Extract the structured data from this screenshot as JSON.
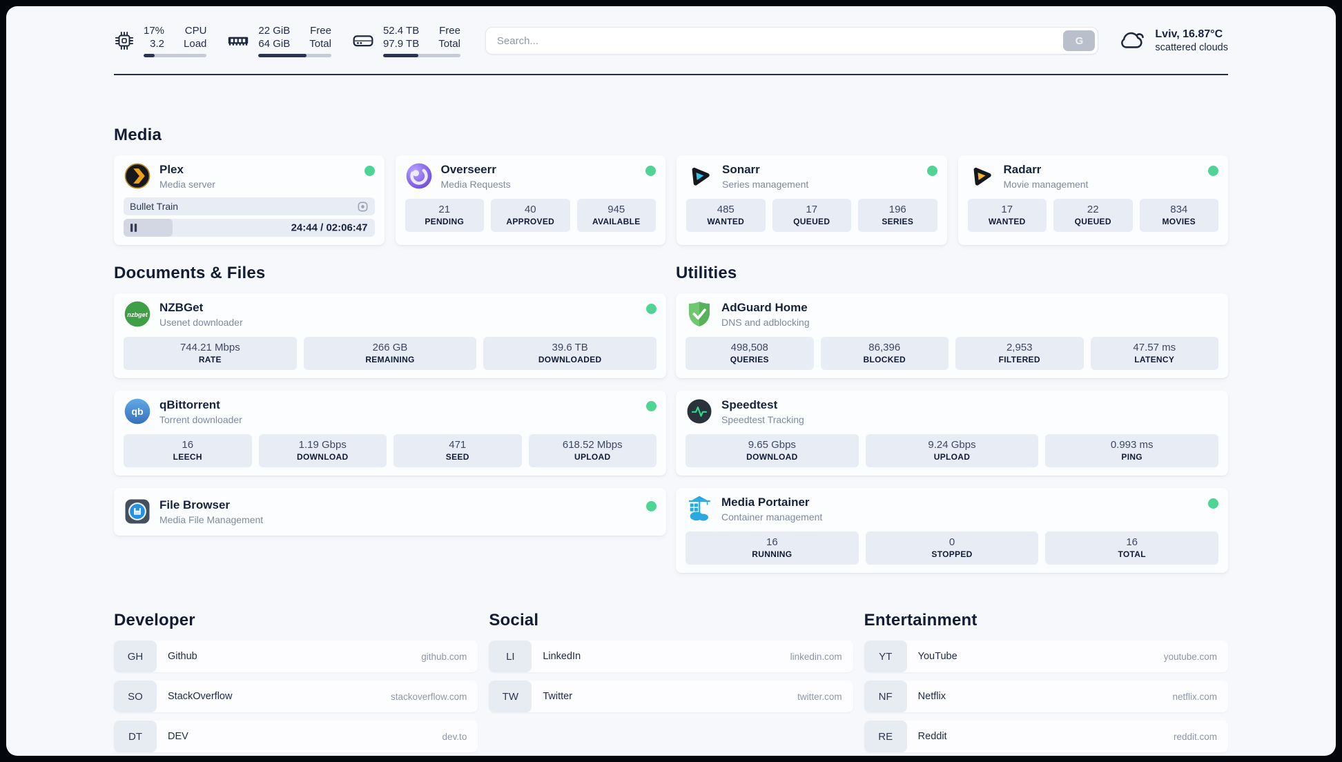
{
  "topbar": {
    "cpu": {
      "values": [
        "17%",
        "3.2"
      ],
      "labels": [
        "CPU",
        "Load"
      ],
      "progress_pct": 17
    },
    "memory": {
      "values": [
        "22 GiB",
        "64 GiB"
      ],
      "labels": [
        "Free",
        "Total"
      ],
      "progress_pct": 66
    },
    "disk": {
      "values": [
        "52.4 TB",
        "97.9 TB"
      ],
      "labels": [
        "Free",
        "Total"
      ],
      "progress_pct": 46
    },
    "search": {
      "placeholder": "Search...",
      "button_label": "G"
    },
    "weather": {
      "location": "Lviv, 16.87°C",
      "condition": "scattered clouds"
    }
  },
  "sections": {
    "media": {
      "header": "Media",
      "plex": {
        "name": "Plex",
        "desc": "Media server",
        "status": "online",
        "now_playing": "Bullet Train",
        "time": "24:44 / 02:06:47",
        "progress_pct": 19.6
      },
      "overseerr": {
        "name": "Overseerr",
        "desc": "Media Requests",
        "status": "online",
        "stats": [
          {
            "value": "21",
            "label": "PENDING"
          },
          {
            "value": "40",
            "label": "APPROVED"
          },
          {
            "value": "945",
            "label": "AVAILABLE"
          }
        ]
      },
      "sonarr": {
        "name": "Sonarr",
        "desc": "Series management",
        "status": "online",
        "stats": [
          {
            "value": "485",
            "label": "WANTED"
          },
          {
            "value": "17",
            "label": "QUEUED"
          },
          {
            "value": "196",
            "label": "SERIES"
          }
        ]
      },
      "radarr": {
        "name": "Radarr",
        "desc": "Movie management",
        "status": "online",
        "stats": [
          {
            "value": "17",
            "label": "WANTED"
          },
          {
            "value": "22",
            "label": "QUEUED"
          },
          {
            "value": "834",
            "label": "MOVIES"
          }
        ]
      }
    },
    "documents": {
      "header": "Documents & Files",
      "nzbget": {
        "name": "NZBGet",
        "desc": "Usenet downloader",
        "status": "online",
        "icon_text": "nzbget",
        "stats": [
          {
            "value": "744.21 Mbps",
            "label": "RATE"
          },
          {
            "value": "266 GB",
            "label": "REMAINING"
          },
          {
            "value": "39.6 TB",
            "label": "DOWNLOADED"
          }
        ]
      },
      "qbittorrent": {
        "name": "qBittorrent",
        "desc": "Torrent downloader",
        "status": "online",
        "icon_text": "qb",
        "stats": [
          {
            "value": "16",
            "label": "LEECH"
          },
          {
            "value": "1.19 Gbps",
            "label": "DOWNLOAD"
          },
          {
            "value": "471",
            "label": "SEED"
          },
          {
            "value": "618.52 Mbps",
            "label": "UPLOAD"
          }
        ]
      },
      "filebrowser": {
        "name": "File Browser",
        "desc": "Media File Management",
        "status": "online"
      }
    },
    "utilities": {
      "header": "Utilities",
      "adguard": {
        "name": "AdGuard Home",
        "desc": "DNS and adblocking",
        "stats": [
          {
            "value": "498,508",
            "label": "QUERIES"
          },
          {
            "value": "86,396",
            "label": "BLOCKED"
          },
          {
            "value": "2,953",
            "label": "FILTERED"
          },
          {
            "value": "47.57 ms",
            "label": "LATENCY"
          }
        ]
      },
      "speedtest": {
        "name": "Speedtest",
        "desc": "Speedtest Tracking",
        "stats": [
          {
            "value": "9.65 Gbps",
            "label": "DOWNLOAD"
          },
          {
            "value": "9.24 Gbps",
            "label": "UPLOAD"
          },
          {
            "value": "0.993 ms",
            "label": "PING"
          }
        ]
      },
      "portainer": {
        "name": "Media Portainer",
        "desc": "Container management",
        "status": "online",
        "stats": [
          {
            "value": "16",
            "label": "RUNNING"
          },
          {
            "value": "0",
            "label": "STOPPED"
          },
          {
            "value": "16",
            "label": "TOTAL"
          }
        ]
      }
    }
  },
  "bookmarks": {
    "developer": {
      "header": "Developer",
      "items": [
        {
          "abbr": "GH",
          "name": "Github",
          "url": "github.com"
        },
        {
          "abbr": "SO",
          "name": "StackOverflow",
          "url": "stackoverflow.com"
        },
        {
          "abbr": "DT",
          "name": "DEV",
          "url": "dev.to"
        }
      ]
    },
    "social": {
      "header": "Social",
      "items": [
        {
          "abbr": "LI",
          "name": "LinkedIn",
          "url": "linkedin.com"
        },
        {
          "abbr": "TW",
          "name": "Twitter",
          "url": "twitter.com"
        }
      ]
    },
    "entertainment": {
      "header": "Entertainment",
      "items": [
        {
          "abbr": "YT",
          "name": "YouTube",
          "url": "youtube.com"
        },
        {
          "abbr": "NF",
          "name": "Netflix",
          "url": "netflix.com"
        },
        {
          "abbr": "RE",
          "name": "Reddit",
          "url": "reddit.com"
        }
      ]
    }
  },
  "colors": {
    "status_online": "#50d494",
    "page_background": "#f7f8fc",
    "stat_box": "#e8ecf4",
    "text_dark": "#17233d",
    "progress_fill": "#2a3450"
  }
}
